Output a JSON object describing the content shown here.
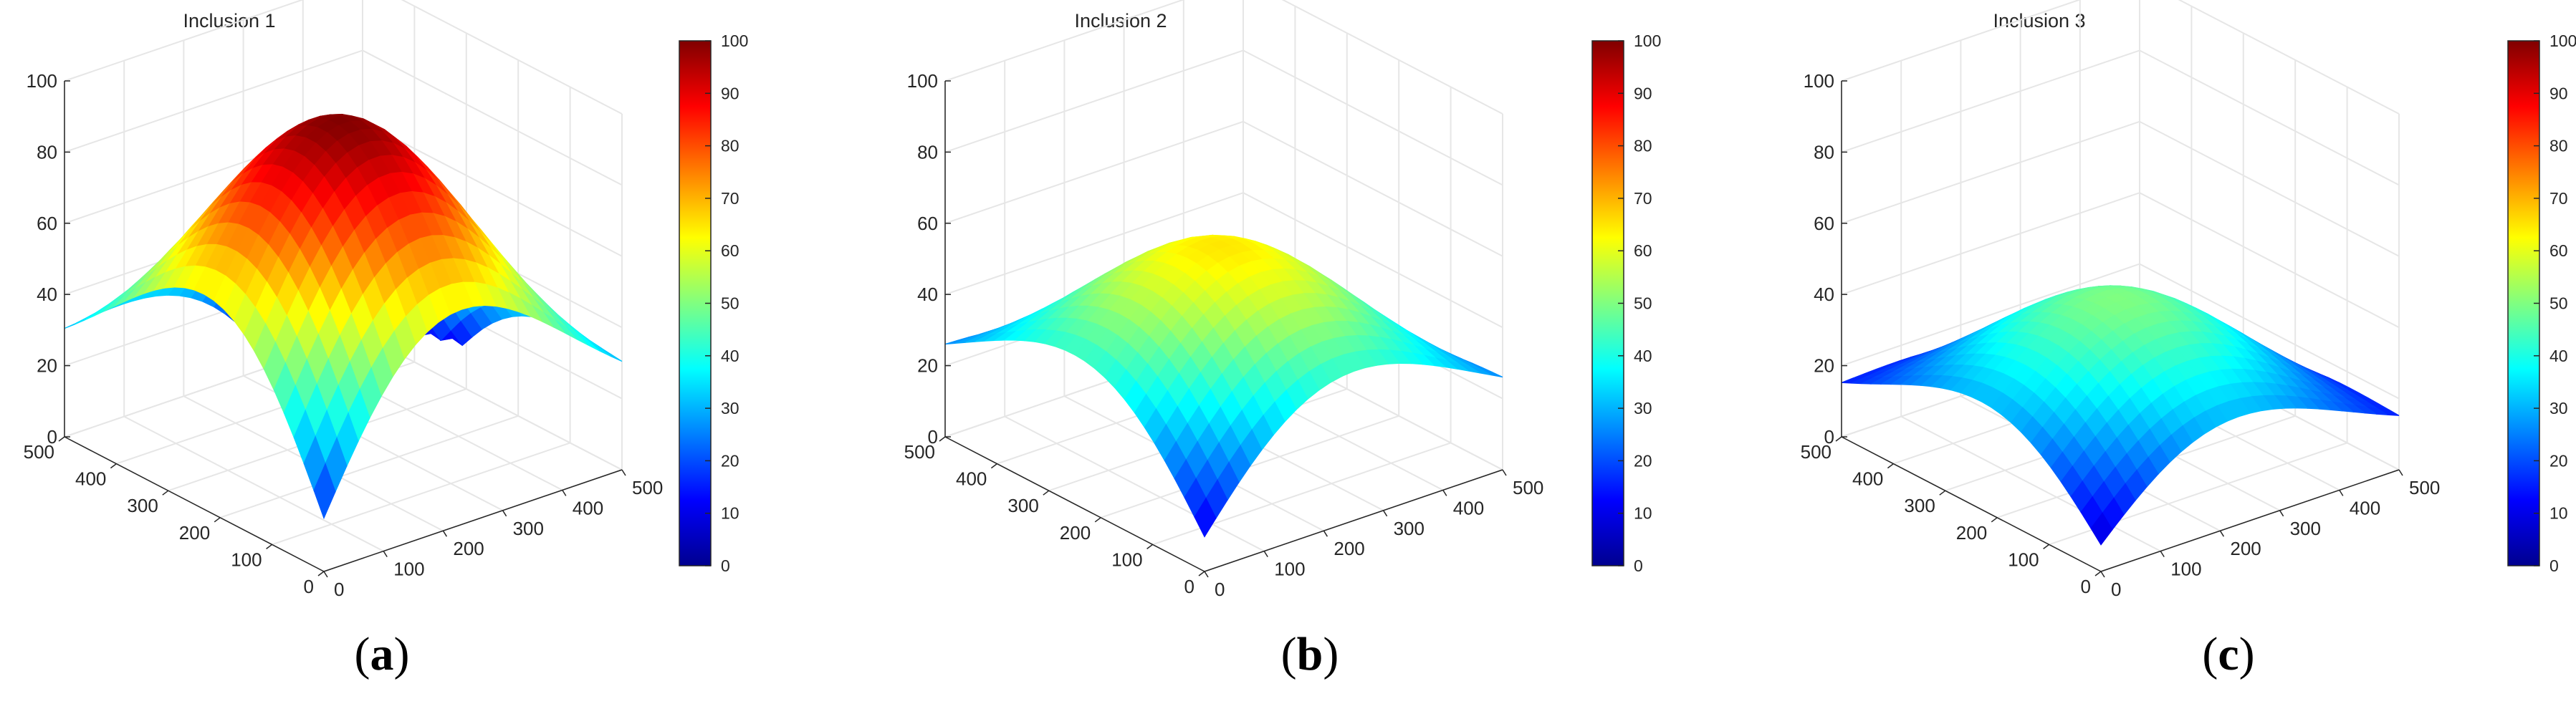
{
  "figure": {
    "colormap": "jet",
    "colormap_stops": [
      "#00008f",
      "#0000ff",
      "#0080ff",
      "#00ffff",
      "#80ff80",
      "#ffff00",
      "#ff8000",
      "#ff0000",
      "#800000"
    ],
    "grid_color": "#e6e6e6",
    "axis_color": "#262626"
  },
  "chart_data": [
    {
      "type": "surface",
      "title": "Inclusion 1",
      "caption": "a",
      "xlim": [
        0,
        500
      ],
      "ylim": [
        0,
        500
      ],
      "zlim": [
        0,
        100
      ],
      "x_ticks": [
        "0",
        "100",
        "200",
        "300",
        "400",
        "500"
      ],
      "y_ticks": [
        "0",
        "100",
        "200",
        "300",
        "400",
        "500"
      ],
      "z_ticks": [
        "0",
        "20",
        "40",
        "60",
        "80",
        "100"
      ],
      "colorbar_ticks": [
        "0",
        "10",
        "20",
        "30",
        "40",
        "50",
        "60",
        "70",
        "80",
        "90",
        "100"
      ],
      "colorbar_range": [
        0,
        100
      ],
      "grid": true,
      "surface": {
        "peak": 100,
        "x_edge": 33,
        "y_edge": 13,
        "bottom_corner": 0
      }
    },
    {
      "type": "surface",
      "title": "Inclusion 2",
      "caption": "b",
      "xlim": [
        0,
        500
      ],
      "ylim": [
        0,
        500
      ],
      "zlim": [
        0,
        100
      ],
      "x_ticks": [
        "0",
        "100",
        "200",
        "300",
        "400",
        "500"
      ],
      "y_ticks": [
        "0",
        "100",
        "200",
        "300",
        "400",
        "500"
      ],
      "z_ticks": [
        "0",
        "20",
        "40",
        "60",
        "80",
        "100"
      ],
      "colorbar_ticks": [
        "0",
        "10",
        "20",
        "30",
        "40",
        "50",
        "60",
        "70",
        "80",
        "90",
        "100"
      ],
      "colorbar_range": [
        0,
        100
      ],
      "grid": true,
      "surface": {
        "peak": 65,
        "x_edge": 30,
        "y_edge": 15,
        "bottom_corner": 0
      }
    },
    {
      "type": "surface",
      "title": "Inclusion 3",
      "caption": "c",
      "xlim": [
        0,
        500
      ],
      "ylim": [
        0,
        500
      ],
      "zlim": [
        0,
        100
      ],
      "x_ticks": [
        "0",
        "100",
        "200",
        "300",
        "400",
        "500"
      ],
      "y_ticks": [
        "0",
        "100",
        "200",
        "300",
        "400",
        "500"
      ],
      "z_ticks": [
        "0",
        "20",
        "40",
        "60",
        "80",
        "100"
      ],
      "colorbar_ticks": [
        "0",
        "10",
        "20",
        "30",
        "40",
        "50",
        "60",
        "70",
        "80",
        "90",
        "100"
      ],
      "colorbar_range": [
        0,
        100
      ],
      "grid": true,
      "surface": {
        "peak": 50,
        "x_edge": 17,
        "y_edge": 6,
        "bottom_corner": 0
      }
    }
  ]
}
